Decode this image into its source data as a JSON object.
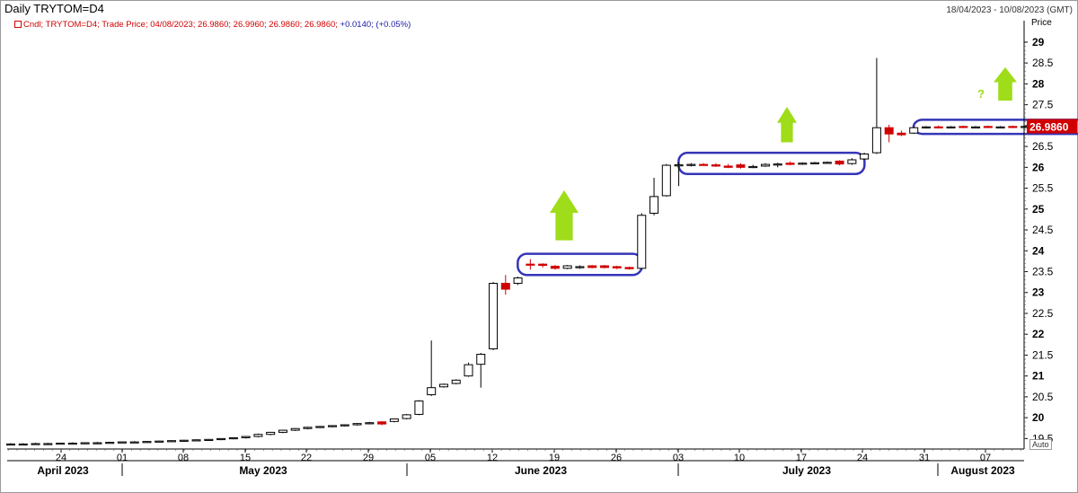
{
  "header": {
    "title": "Daily TRYTOM=D4",
    "date_range": "18/04/2023 - 10/08/2023 (GMT)",
    "legend_prefix": "Cndl; TRYTOM=D4; Trade Price; 04/08/2023; 26.9860; 26.9960; 26.9860; 26.9860;",
    "legend_change": "+0.0140; (+0.05%)",
    "auto_label": "Auto"
  },
  "chart_data": {
    "type": "candlestick",
    "title": "Daily TRYTOM=D4",
    "ylabel": "Price",
    "ylim": [
      19.25,
      29.3
    ],
    "y_ticks": [
      "19.5",
      "20",
      "20.5",
      "21",
      "21.5",
      "22",
      "22.5",
      "23",
      "23.5",
      "24",
      "24.5",
      "25",
      "25.5",
      "26",
      "26.5",
      "27",
      "27.5",
      "28",
      "28.5",
      "29"
    ],
    "last_price": "26.9860",
    "x_day_ticks": [
      "24",
      "01",
      "08",
      "15",
      "22",
      "29",
      "05",
      "12",
      "19",
      "26",
      "03",
      "10",
      "17",
      "24",
      "31",
      "07"
    ],
    "x_month_labels": [
      "April 2023",
      "May 2023",
      "June 2023",
      "July 2023",
      "August 2023"
    ],
    "grid": false,
    "candles": [
      {
        "o": 19.37,
        "h": 19.39,
        "l": 19.35,
        "c": 19.37,
        "bear": false
      },
      {
        "o": 19.37,
        "h": 19.39,
        "l": 19.35,
        "c": 19.37,
        "bear": false
      },
      {
        "o": 19.37,
        "h": 19.4,
        "l": 19.35,
        "c": 19.38,
        "bear": false
      },
      {
        "o": 19.38,
        "h": 19.4,
        "l": 19.36,
        "c": 19.38,
        "bear": false
      },
      {
        "o": 19.38,
        "h": 19.4,
        "l": 19.36,
        "c": 19.39,
        "bear": false
      },
      {
        "o": 19.39,
        "h": 19.41,
        "l": 19.37,
        "c": 19.39,
        "bear": false
      },
      {
        "o": 19.39,
        "h": 19.41,
        "l": 19.37,
        "c": 19.4,
        "bear": false
      },
      {
        "o": 19.4,
        "h": 19.42,
        "l": 19.38,
        "c": 19.4,
        "bear": false
      },
      {
        "o": 19.4,
        "h": 19.42,
        "l": 19.38,
        "c": 19.41,
        "bear": false
      },
      {
        "o": 19.41,
        "h": 19.43,
        "l": 19.39,
        "c": 19.42,
        "bear": false
      },
      {
        "o": 19.42,
        "h": 19.44,
        "l": 19.4,
        "c": 19.42,
        "bear": false
      },
      {
        "o": 19.42,
        "h": 19.44,
        "l": 19.4,
        "c": 19.43,
        "bear": false
      },
      {
        "o": 19.43,
        "h": 19.45,
        "l": 19.41,
        "c": 19.44,
        "bear": false
      },
      {
        "o": 19.44,
        "h": 19.46,
        "l": 19.42,
        "c": 19.45,
        "bear": false
      },
      {
        "o": 19.45,
        "h": 19.47,
        "l": 19.43,
        "c": 19.46,
        "bear": false
      },
      {
        "o": 19.46,
        "h": 19.48,
        "l": 19.44,
        "c": 19.47,
        "bear": false
      },
      {
        "o": 19.47,
        "h": 19.49,
        "l": 19.45,
        "c": 19.48,
        "bear": false
      },
      {
        "o": 19.48,
        "h": 19.5,
        "l": 19.46,
        "c": 19.5,
        "bear": false
      },
      {
        "o": 19.5,
        "h": 19.53,
        "l": 19.48,
        "c": 19.52,
        "bear": false
      },
      {
        "o": 19.52,
        "h": 19.56,
        "l": 19.5,
        "c": 19.55,
        "bear": false
      },
      {
        "o": 19.55,
        "h": 19.62,
        "l": 19.53,
        "c": 19.6,
        "bear": false
      },
      {
        "o": 19.6,
        "h": 19.66,
        "l": 19.58,
        "c": 19.65,
        "bear": false
      },
      {
        "o": 19.65,
        "h": 19.71,
        "l": 19.63,
        "c": 19.7,
        "bear": false
      },
      {
        "o": 19.7,
        "h": 19.75,
        "l": 19.68,
        "c": 19.74,
        "bear": false
      },
      {
        "o": 19.74,
        "h": 19.78,
        "l": 19.72,
        "c": 19.77,
        "bear": false
      },
      {
        "o": 19.77,
        "h": 19.8,
        "l": 19.75,
        "c": 19.79,
        "bear": false
      },
      {
        "o": 19.79,
        "h": 19.82,
        "l": 19.77,
        "c": 19.81,
        "bear": false
      },
      {
        "o": 19.81,
        "h": 19.84,
        "l": 19.79,
        "c": 19.83,
        "bear": false
      },
      {
        "o": 19.83,
        "h": 19.87,
        "l": 19.81,
        "c": 19.86,
        "bear": false
      },
      {
        "o": 19.86,
        "h": 19.9,
        "l": 19.84,
        "c": 19.88,
        "bear": false
      },
      {
        "o": 19.9,
        "h": 19.92,
        "l": 19.82,
        "c": 19.85,
        "bear": true
      },
      {
        "o": 19.91,
        "h": 19.98,
        "l": 19.89,
        "c": 19.97,
        "bear": false
      },
      {
        "o": 19.98,
        "h": 20.09,
        "l": 19.96,
        "c": 20.07,
        "bear": false
      },
      {
        "o": 20.08,
        "h": 20.42,
        "l": 20.06,
        "c": 20.4,
        "bear": false
      },
      {
        "o": 20.55,
        "h": 21.85,
        "l": 20.52,
        "c": 20.72,
        "bear": false
      },
      {
        "o": 20.74,
        "h": 20.82,
        "l": 20.72,
        "c": 20.8,
        "bear": false
      },
      {
        "o": 20.82,
        "h": 20.92,
        "l": 20.8,
        "c": 20.9,
        "bear": false
      },
      {
        "o": 21.0,
        "h": 21.32,
        "l": 20.98,
        "c": 21.27,
        "bear": false
      },
      {
        "o": 21.28,
        "h": 21.55,
        "l": 20.72,
        "c": 21.52,
        "bear": false
      },
      {
        "o": 21.65,
        "h": 23.25,
        "l": 21.62,
        "c": 23.22,
        "bear": false
      },
      {
        "o": 23.22,
        "h": 23.42,
        "l": 22.95,
        "c": 23.08,
        "bear": true
      },
      {
        "o": 23.22,
        "h": 23.38,
        "l": 23.18,
        "c": 23.35,
        "bear": false
      },
      {
        "o": 23.68,
        "h": 23.8,
        "l": 23.55,
        "c": 23.68,
        "bear": true
      },
      {
        "o": 23.68,
        "h": 23.7,
        "l": 23.6,
        "c": 23.65,
        "bear": true
      },
      {
        "o": 23.63,
        "h": 23.66,
        "l": 23.55,
        "c": 23.58,
        "bear": true
      },
      {
        "o": 23.58,
        "h": 23.66,
        "l": 23.56,
        "c": 23.64,
        "bear": false
      },
      {
        "o": 23.6,
        "h": 23.65,
        "l": 23.57,
        "c": 23.62,
        "bear": false
      },
      {
        "o": 23.64,
        "h": 23.66,
        "l": 23.58,
        "c": 23.6,
        "bear": true
      },
      {
        "o": 23.64,
        "h": 23.66,
        "l": 23.58,
        "c": 23.6,
        "bear": true
      },
      {
        "o": 23.62,
        "h": 23.64,
        "l": 23.56,
        "c": 23.59,
        "bear": true
      },
      {
        "o": 23.6,
        "h": 23.62,
        "l": 23.55,
        "c": 23.57,
        "bear": true
      },
      {
        "o": 23.58,
        "h": 24.9,
        "l": 23.55,
        "c": 24.85,
        "bear": false
      },
      {
        "o": 24.9,
        "h": 25.75,
        "l": 24.85,
        "c": 25.3,
        "bear": false
      },
      {
        "o": 25.32,
        "h": 26.08,
        "l": 25.3,
        "c": 26.05,
        "bear": false
      },
      {
        "o": 26.05,
        "h": 26.12,
        "l": 25.55,
        "c": 26.06,
        "bear": false
      },
      {
        "o": 26.06,
        "h": 26.1,
        "l": 26.02,
        "c": 26.07,
        "bear": false
      },
      {
        "o": 26.07,
        "h": 26.1,
        "l": 26.04,
        "c": 26.06,
        "bear": true
      },
      {
        "o": 26.06,
        "h": 26.1,
        "l": 26.01,
        "c": 26.03,
        "bear": true
      },
      {
        "o": 26.03,
        "h": 26.08,
        "l": 25.98,
        "c": 26.0,
        "bear": true
      },
      {
        "o": 26.06,
        "h": 26.1,
        "l": 25.97,
        "c": 26.0,
        "bear": true
      },
      {
        "o": 26.0,
        "h": 26.06,
        "l": 25.98,
        "c": 26.02,
        "bear": false
      },
      {
        "o": 26.03,
        "h": 26.1,
        "l": 26.01,
        "c": 26.07,
        "bear": false
      },
      {
        "o": 26.07,
        "h": 26.11,
        "l": 26.0,
        "c": 26.08,
        "bear": false
      },
      {
        "o": 26.1,
        "h": 26.14,
        "l": 26.05,
        "c": 26.07,
        "bear": true
      },
      {
        "o": 26.08,
        "h": 26.12,
        "l": 26.06,
        "c": 26.1,
        "bear": false
      },
      {
        "o": 26.1,
        "h": 26.13,
        "l": 26.08,
        "c": 26.11,
        "bear": false
      },
      {
        "o": 26.11,
        "h": 26.14,
        "l": 26.09,
        "c": 26.12,
        "bear": false
      },
      {
        "o": 26.15,
        "h": 26.17,
        "l": 26.05,
        "c": 26.08,
        "bear": true
      },
      {
        "o": 26.09,
        "h": 26.22,
        "l": 26.06,
        "c": 26.18,
        "bear": false
      },
      {
        "o": 26.2,
        "h": 26.35,
        "l": 26.18,
        "c": 26.32,
        "bear": false
      },
      {
        "o": 26.35,
        "h": 28.62,
        "l": 26.32,
        "c": 26.95,
        "bear": false
      },
      {
        "o": 26.95,
        "h": 27.02,
        "l": 26.6,
        "c": 26.8,
        "bear": true
      },
      {
        "o": 26.82,
        "h": 26.88,
        "l": 26.75,
        "c": 26.78,
        "bear": true
      },
      {
        "o": 26.82,
        "h": 26.98,
        "l": 26.8,
        "c": 26.95,
        "bear": false
      },
      {
        "o": 26.95,
        "h": 26.99,
        "l": 26.93,
        "c": 26.97,
        "bear": false
      },
      {
        "o": 26.97,
        "h": 27.0,
        "l": 26.94,
        "c": 26.96,
        "bear": true
      },
      {
        "o": 26.96,
        "h": 26.99,
        "l": 26.94,
        "c": 26.97,
        "bear": false
      },
      {
        "o": 26.98,
        "h": 27.0,
        "l": 26.94,
        "c": 26.96,
        "bear": true
      },
      {
        "o": 26.96,
        "h": 26.99,
        "l": 26.94,
        "c": 26.97,
        "bear": false
      },
      {
        "o": 26.98,
        "h": 27.0,
        "l": 26.94,
        "c": 26.96,
        "bear": true
      },
      {
        "o": 26.96,
        "h": 26.99,
        "l": 26.94,
        "c": 26.97,
        "bear": false
      },
      {
        "o": 26.98,
        "h": 27.0,
        "l": 26.94,
        "c": 26.96,
        "bear": true
      },
      {
        "o": 26.96,
        "h": 26.99,
        "l": 26.94,
        "c": 26.98,
        "bear": false
      },
      {
        "o": 26.98,
        "h": 27.0,
        "l": 26.95,
        "c": 26.97,
        "bear": true
      },
      {
        "o": 26.97,
        "h": 27.0,
        "l": 26.95,
        "c": 26.98,
        "bear": false
      },
      {
        "o": 26.98,
        "h": 27.01,
        "l": 26.96,
        "c": 26.99,
        "bear": false
      }
    ],
    "annotations": {
      "question_mark": "?",
      "arrow_color": "#9fdc1a",
      "box_color": "#3535b8"
    },
    "colors": {
      "bear": "#d00000",
      "bull_fill": "#ffffff",
      "stroke": "#000000",
      "price_tag": "#d00000"
    }
  }
}
